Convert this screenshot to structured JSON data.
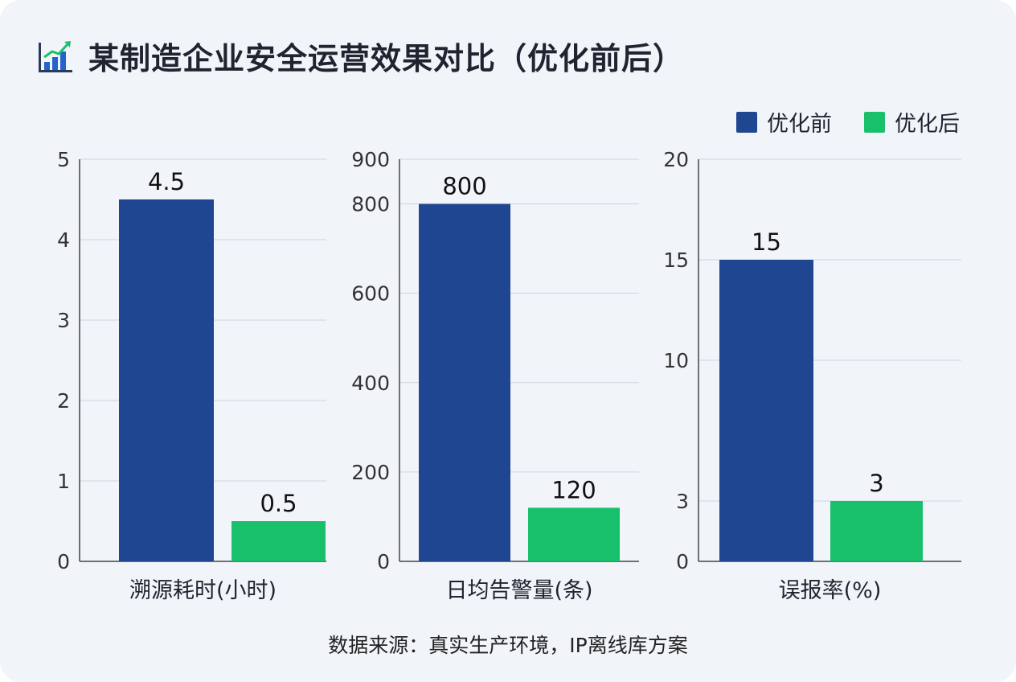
{
  "header": {
    "title": "某制造企业安全运营效果对比（优化前后）",
    "icon": "bar-chart-icon"
  },
  "legend": {
    "before_label": "优化前",
    "after_label": "优化后",
    "before_color": "#1f4690",
    "after_color": "#19c06b"
  },
  "chart_data": [
    {
      "type": "bar",
      "xlabel": "溯源耗时(小时)",
      "ylim": [
        0,
        5
      ],
      "ticks": [
        "0",
        "1",
        "2",
        "3",
        "4",
        "5"
      ],
      "series": [
        {
          "name": "优化前",
          "values": [
            4.5
          ],
          "labels": [
            "4.5"
          ]
        },
        {
          "name": "优化后",
          "values": [
            0.5
          ],
          "labels": [
            "0.5"
          ]
        }
      ]
    },
    {
      "type": "bar",
      "xlabel": "日均告警量(条)",
      "ylim": [
        0,
        900
      ],
      "ticks": [
        "0",
        "200",
        "400",
        "600",
        "800",
        "900"
      ],
      "series": [
        {
          "name": "优化前",
          "values": [
            800
          ],
          "labels": [
            "800"
          ]
        },
        {
          "name": "优化后",
          "values": [
            120
          ],
          "labels": [
            "120"
          ]
        }
      ]
    },
    {
      "type": "bar",
      "xlabel": "误报率(%)",
      "ylim": [
        0,
        20
      ],
      "ticks": [
        "0",
        "3",
        "10",
        "15",
        "20"
      ],
      "series": [
        {
          "name": "优化前",
          "values": [
            15
          ],
          "labels": [
            "15"
          ]
        },
        {
          "name": "优化后",
          "values": [
            3
          ],
          "labels": [
            "3"
          ]
        }
      ]
    }
  ],
  "footer": {
    "source": "数据来源：真实生产环境，IP离线库方案"
  }
}
